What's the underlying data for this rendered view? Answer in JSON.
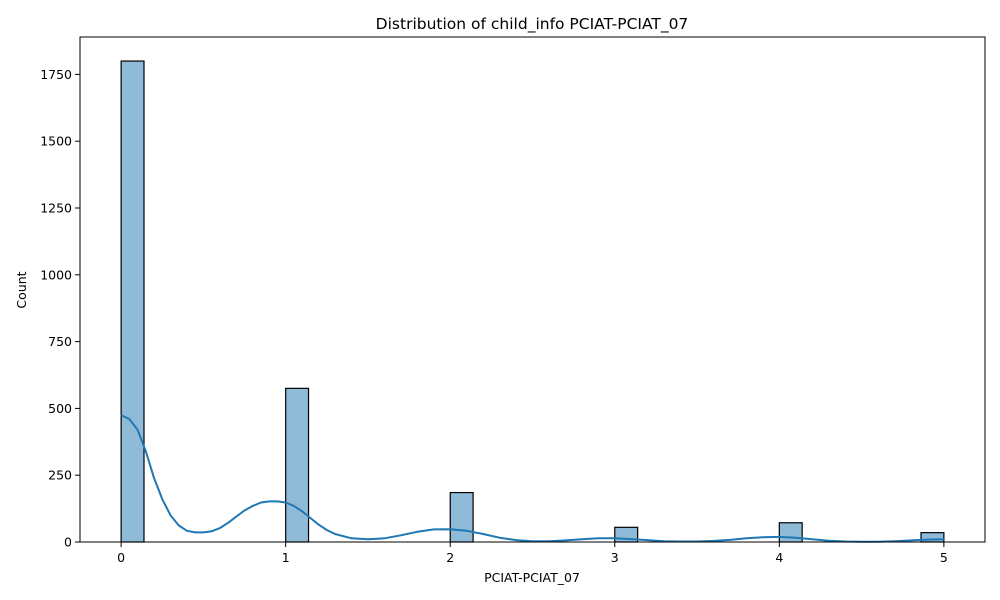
{
  "chart_data": {
    "type": "histogram",
    "title": "Distribution of child_info PCIAT-PCIAT_07",
    "xlabel": "PCIAT-PCIAT_07",
    "ylabel": "Count",
    "xlim": [
      -0.25,
      5.25
    ],
    "ylim": [
      0,
      1890
    ],
    "x_ticks": [
      0,
      1,
      2,
      3,
      4,
      5
    ],
    "y_ticks": [
      0,
      250,
      500,
      750,
      1000,
      1250,
      1500,
      1750
    ],
    "bin_width": 0.1389,
    "bars": [
      {
        "x0": 0.0,
        "x1": 0.1389,
        "count": 1800
      },
      {
        "x0": 1.0,
        "x1": 1.1389,
        "count": 575
      },
      {
        "x0": 2.0,
        "x1": 2.1389,
        "count": 185
      },
      {
        "x0": 3.0,
        "x1": 3.1389,
        "count": 55
      },
      {
        "x0": 4.0,
        "x1": 4.1389,
        "count": 72
      },
      {
        "x0": 4.8611,
        "x1": 5.0,
        "count": 35
      }
    ],
    "kde": {
      "x": [
        0.0,
        0.05,
        0.1,
        0.15,
        0.2,
        0.25,
        0.3,
        0.35,
        0.4,
        0.45,
        0.5,
        0.55,
        0.6,
        0.65,
        0.7,
        0.75,
        0.8,
        0.85,
        0.9,
        0.95,
        1.0,
        1.05,
        1.1,
        1.15,
        1.2,
        1.25,
        1.3,
        1.4,
        1.5,
        1.6,
        1.7,
        1.8,
        1.9,
        2.0,
        2.1,
        2.2,
        2.3,
        2.4,
        2.5,
        2.6,
        2.7,
        2.8,
        2.9,
        3.0,
        3.1,
        3.2,
        3.3,
        3.4,
        3.5,
        3.6,
        3.7,
        3.8,
        3.9,
        4.0,
        4.1,
        4.2,
        4.3,
        4.4,
        4.5,
        4.6,
        4.7,
        4.8,
        4.9,
        5.0
      ],
      "y": [
        475,
        460,
        420,
        340,
        240,
        160,
        100,
        62,
        42,
        36,
        36,
        40,
        52,
        72,
        95,
        118,
        135,
        148,
        152,
        152,
        148,
        135,
        115,
        90,
        65,
        45,
        30,
        14,
        10,
        14,
        25,
        38,
        47,
        48,
        42,
        30,
        16,
        7,
        3,
        3,
        6,
        10,
        14,
        14,
        11,
        7,
        3,
        2,
        2,
        4,
        8,
        14,
        18,
        19,
        16,
        10,
        5,
        2,
        1,
        1,
        3,
        6,
        9,
        10
      ]
    },
    "bar_color": "#1f77b4",
    "line_color": "#1f77b4",
    "grid": false
  }
}
